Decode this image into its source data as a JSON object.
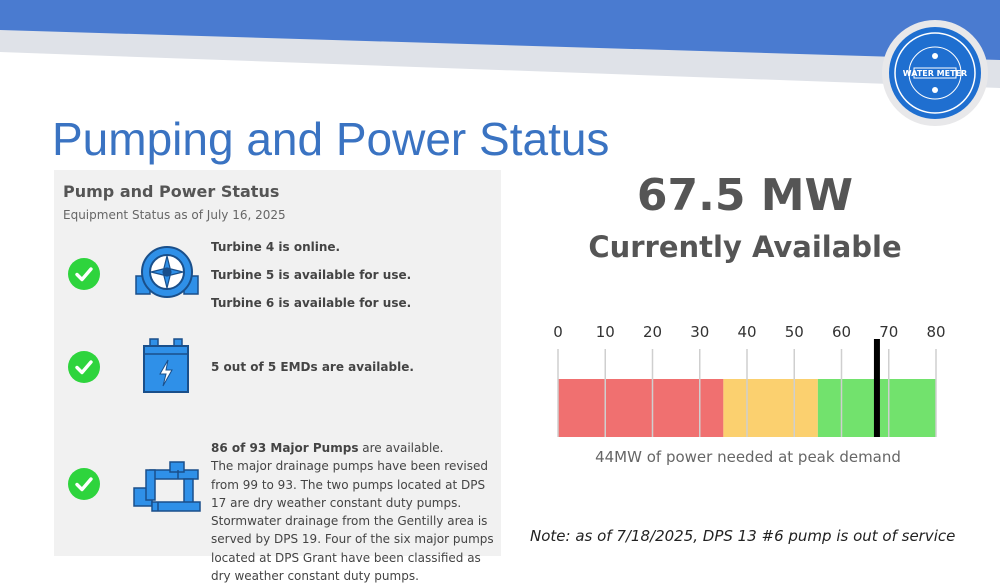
{
  "page_title": "Pumping and Power Status",
  "logo_text": "SEWERAGE & WATER BOARD · WATER METER · NEW ORLEANS LA",
  "panel": {
    "title": "Pump and Power Status",
    "subtitle": "Equipment Status as of July 16, 2025",
    "turbines": [
      "Turbine 4 is online.",
      "Turbine 5 is available for use.",
      "Turbine 6 is available for use."
    ],
    "emd_status": "5 out of 5 EMDs are available.",
    "pumps_bold": "86 of 93 Major Pumps",
    "pumps_rest": " are available.",
    "pumps_desc": "The major drainage pumps have been revised from 99 to 93. The two pumps located at DPS 17 are dry weather constant duty pumps. Stormwater drainage from the Gentilly area is served by DPS 19. Four of the six major pumps located at DPS Grant have been classified as dry weather constant duty pumps."
  },
  "power": {
    "available": "67.5 MW",
    "available_label": "Currently Available",
    "peak_note": "44MW of power needed at peak demand"
  },
  "gauge": {
    "ticks": [
      "0",
      "10",
      "20",
      "30",
      "40",
      "50",
      "60",
      "70",
      "80"
    ],
    "min": 0,
    "max": 80,
    "current": 67.5,
    "zones": [
      {
        "from": 0,
        "to": 35,
        "color": "#f07070"
      },
      {
        "from": 35,
        "to": 55,
        "color": "#fbd06f"
      },
      {
        "from": 55,
        "to": 80,
        "color": "#72e26d"
      }
    ]
  },
  "footer_note": "Note: as of 7/18/2025, DPS 13 #6 pump is out of service",
  "colors": {
    "accent_blue": "#3a73c2",
    "band_blue": "#4a7bd0",
    "check_green": "#2ed43d",
    "icon_blue": "#2f90e8"
  }
}
